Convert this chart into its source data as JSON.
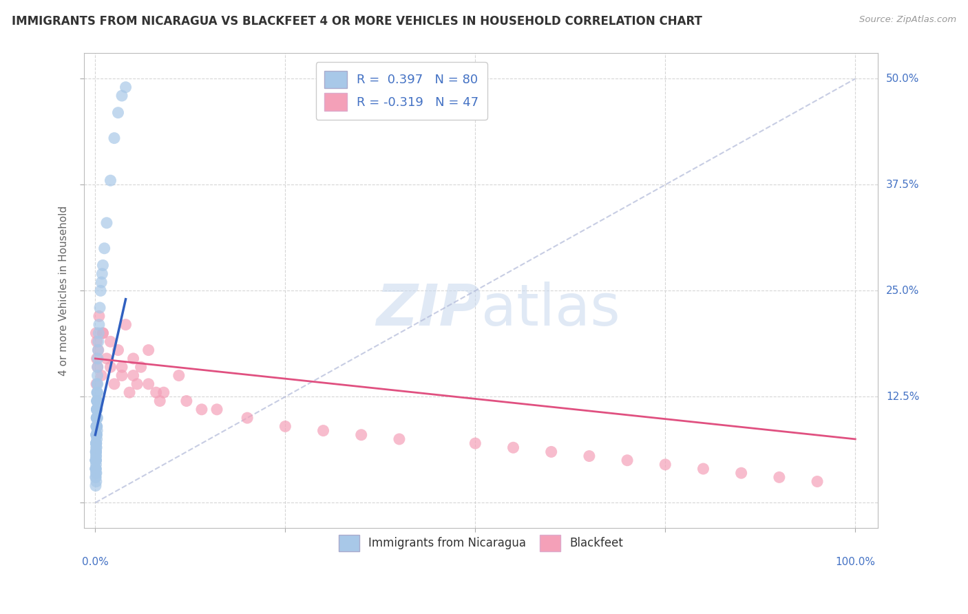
{
  "title": "IMMIGRANTS FROM NICARAGUA VS BLACKFEET 4 OR MORE VEHICLES IN HOUSEHOLD CORRELATION CHART",
  "source": "Source: ZipAtlas.com",
  "yaxis_label": "4 or more Vehicles in Household",
  "legend1_label": "Immigrants from Nicaragua",
  "legend2_label": "Blackfeet",
  "R1": 0.397,
  "N1": 80,
  "R2": -0.319,
  "N2": 47,
  "color_blue": "#a8c8e8",
  "color_blue_line": "#3060c0",
  "color_pink": "#f4a0b8",
  "color_pink_line": "#e05080",
  "color_text_blue": "#4472c4",
  "background": "#ffffff",
  "xlim": [
    0,
    100
  ],
  "ylim": [
    0,
    50
  ],
  "blue_x": [
    0.05,
    0.08,
    0.1,
    0.12,
    0.15,
    0.18,
    0.2,
    0.22,
    0.25,
    0.28,
    0.05,
    0.07,
    0.09,
    0.11,
    0.14,
    0.16,
    0.19,
    0.21,
    0.24,
    0.27,
    0.06,
    0.08,
    0.1,
    0.13,
    0.15,
    0.17,
    0.2,
    0.23,
    0.26,
    0.3,
    0.05,
    0.06,
    0.08,
    0.1,
    0.12,
    0.14,
    0.16,
    0.18,
    0.2,
    0.22,
    0.05,
    0.07,
    0.09,
    0.11,
    0.13,
    0.15,
    0.17,
    0.19,
    0.21,
    0.23,
    0.25,
    0.28,
    0.3,
    0.33,
    0.36,
    0.4,
    0.45,
    0.5,
    0.6,
    0.7,
    0.8,
    0.9,
    1.0,
    1.2,
    1.5,
    2.0,
    2.5,
    3.0,
    3.5,
    4.0,
    0.05,
    0.06,
    0.07,
    0.08,
    0.09,
    0.1,
    0.11,
    0.12,
    0.13,
    0.14
  ],
  "blue_y": [
    5.0,
    6.0,
    5.5,
    7.0,
    6.5,
    8.0,
    7.5,
    9.0,
    8.5,
    10.0,
    4.0,
    5.0,
    6.0,
    7.0,
    8.0,
    9.0,
    10.0,
    11.0,
    12.0,
    13.0,
    5.0,
    6.0,
    7.0,
    8.0,
    9.0,
    10.0,
    11.0,
    12.0,
    13.0,
    14.0,
    3.0,
    4.0,
    5.0,
    6.0,
    7.0,
    8.0,
    9.0,
    10.0,
    11.0,
    12.0,
    4.0,
    5.0,
    6.0,
    7.0,
    8.0,
    9.0,
    10.0,
    11.0,
    12.0,
    13.0,
    14.0,
    15.0,
    16.0,
    17.0,
    18.0,
    19.0,
    20.0,
    21.0,
    23.0,
    25.0,
    26.0,
    27.0,
    28.0,
    30.0,
    33.0,
    38.0,
    43.0,
    46.0,
    48.0,
    49.0,
    2.0,
    3.0,
    4.0,
    5.0,
    3.5,
    4.5,
    5.5,
    6.5,
    2.5,
    3.5
  ],
  "pink_x": [
    0.1,
    0.2,
    0.5,
    1.0,
    2.0,
    3.0,
    4.0,
    5.0,
    6.0,
    7.0,
    0.15,
    0.3,
    0.8,
    1.5,
    2.5,
    3.5,
    5.0,
    7.0,
    9.0,
    11.0,
    0.2,
    0.4,
    1.0,
    2.0,
    3.5,
    5.5,
    8.0,
    12.0,
    16.0,
    20.0,
    25.0,
    30.0,
    35.0,
    40.0,
    50.0,
    55.0,
    60.0,
    65.0,
    70.0,
    75.0,
    80.0,
    85.0,
    90.0,
    95.0,
    4.5,
    8.5,
    14.0
  ],
  "pink_y": [
    20.0,
    17.0,
    22.0,
    20.0,
    19.0,
    18.0,
    21.0,
    17.0,
    16.0,
    18.0,
    14.0,
    16.0,
    15.0,
    17.0,
    14.0,
    16.0,
    15.0,
    14.0,
    13.0,
    15.0,
    19.0,
    18.0,
    20.0,
    16.0,
    15.0,
    14.0,
    13.0,
    12.0,
    11.0,
    10.0,
    9.0,
    8.5,
    8.0,
    7.5,
    7.0,
    6.5,
    6.0,
    5.5,
    5.0,
    4.5,
    4.0,
    3.5,
    3.0,
    2.5,
    13.0,
    12.0,
    11.0
  ],
  "blue_trend": [
    0,
    4.0,
    13.0,
    23.0
  ],
  "pink_trend_x0": 0,
  "pink_trend_y0": 17.0,
  "pink_trend_x1": 100,
  "pink_trend_y1": 7.5,
  "diag_x0": 0,
  "diag_y0": 0,
  "diag_x1": 100,
  "diag_y1": 50
}
